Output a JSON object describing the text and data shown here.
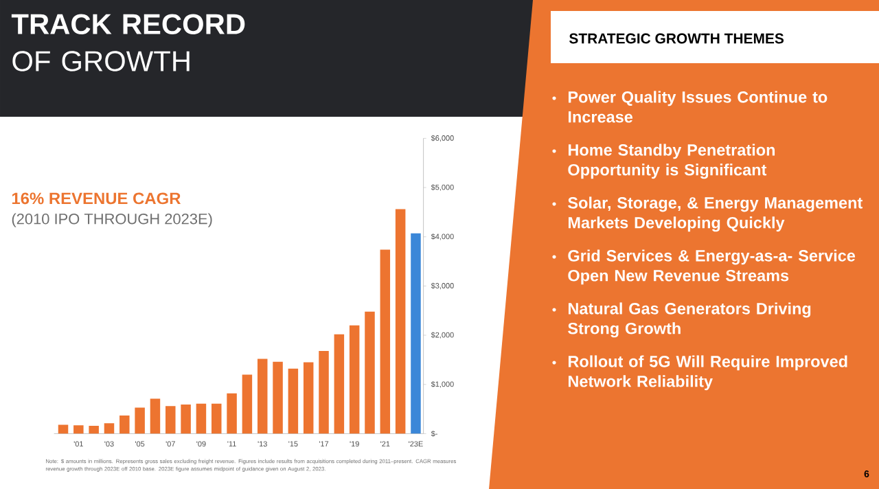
{
  "chart_data": [
    {
      "type": "bar",
      "title": "**TRACK RECORD** OF GROWTH",
      "subtitle": "16% REVENUE CAGR",
      "annotations": [
        "(2010 IPO THROUGH 2023E)",
        "Note: $ amounts in millions. Represents gross sales excluding freight revenue. Figures include results from acquisitions completed during 2011–present. CAGR measures revenue growth through 2023E off 2010 base. 2023E figure assumes midpoint of guidance given on August 2, 2023.",
        "6"
      ],
      "categories": [
        null,
        "'01",
        null,
        "'03",
        null,
        "'05",
        null,
        "'07",
        null,
        "'09",
        null,
        "'11",
        null,
        "'13",
        null,
        "'15",
        null,
        "'17",
        null,
        "'19",
        null,
        "'21",
        null,
        "'23E"
      ],
      "values": [
        180,
        170,
        160,
        210,
        370,
        530,
        710,
        560,
        590,
        610,
        610,
        820,
        1200,
        1520,
        1460,
        1320,
        1450,
        1680,
        2020,
        2200,
        2480,
        3740,
        4560,
        4070
      ],
      "colors": [
        "#ed7430",
        "#ed7430",
        "#ed7430",
        "#ed7430",
        "#ed7430",
        "#ed7430",
        "#ed7430",
        "#ed7430",
        "#ed7430",
        "#ed7430",
        "#ed7430",
        "#ed7430",
        "#ed7430",
        "#ed7430",
        "#ed7430",
        "#ed7430",
        "#ed7430",
        "#ed7430",
        "#ed7430",
        "#ed7430",
        "#ed7430",
        "#ed7430",
        "#ed7430",
        "#3b87d8"
      ],
      "ylim": [
        0,
        6000
      ],
      "yticks": [
        {
          "value": 0,
          "label": "$-"
        },
        {
          "value": 1000,
          "label": "$1,000"
        },
        {
          "value": 2000,
          "label": "$2,000"
        },
        {
          "value": 3000,
          "label": "$3,000"
        },
        {
          "value": 4000,
          "label": "$4,000"
        },
        {
          "value": 5000,
          "label": "$5,000"
        },
        {
          "value": 6000,
          "label": "$6,000"
        }
      ]
    },
    {
      "type": "other",
      "title": "STRATEGIC GROWTH THEMES",
      "annotations": [
        "Power Quality Issues Continue to Increase",
        "Home Standby Penetration Opportunity is Significant",
        "Solar, Storage, & Energy Management Markets Developing Quickly",
        "Grid Services & Energy-as-a- Service Open New Revenue Streams",
        "Natural Gas Generators Driving Strong Growth",
        "Rollout of 5G Will Require Improved Network Reliability"
      ]
    }
  ]
}
